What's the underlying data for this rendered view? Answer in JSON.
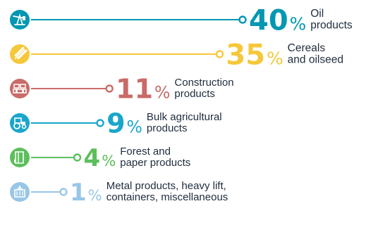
{
  "chart_data": {
    "type": "bar",
    "orientation": "horizontal",
    "unit": "%",
    "categories": [
      "Oil products",
      "Cereals and oilseed",
      "Construction products",
      "Bulk agricultural products",
      "Forest and paper products",
      "Metal products, heavy lift, containers, miscellaneous"
    ],
    "values": [
      40,
      35,
      11,
      9,
      4,
      1
    ],
    "items": [
      {
        "value": 40,
        "value_text": "40",
        "pct_sign": "%",
        "label_lines": [
          "Oil",
          "products"
        ],
        "color": "#0097b3",
        "icon": "oil-pump-icon"
      },
      {
        "value": 35,
        "value_text": "35",
        "pct_sign": "%",
        "label_lines": [
          "Cereals",
          "and oilseed"
        ],
        "color": "#f5c83a",
        "icon": "wheat-icon"
      },
      {
        "value": 11,
        "value_text": "11",
        "pct_sign": "%",
        "label_lines": [
          "Construction",
          "products"
        ],
        "color": "#c96b68",
        "icon": "bricks-icon"
      },
      {
        "value": 9,
        "value_text": "9",
        "pct_sign": "%",
        "label_lines": [
          "Bulk agricultural",
          "products"
        ],
        "color": "#1aa6cc",
        "icon": "tractor-icon"
      },
      {
        "value": 4,
        "value_text": "4",
        "pct_sign": "%",
        "label_lines": [
          "Forest and",
          "paper products"
        ],
        "color": "#5cbf5c",
        "icon": "paper-roll-icon"
      },
      {
        "value": 1,
        "value_text": "1",
        "pct_sign": "%",
        "label_lines": [
          "Metal products, heavy lift,",
          "containers, miscellaneous"
        ],
        "color": "#98c6e6",
        "icon": "container-crane-icon"
      }
    ],
    "title": "",
    "xlabel": "",
    "ylabel": "",
    "grid": false,
    "legend": "none"
  }
}
